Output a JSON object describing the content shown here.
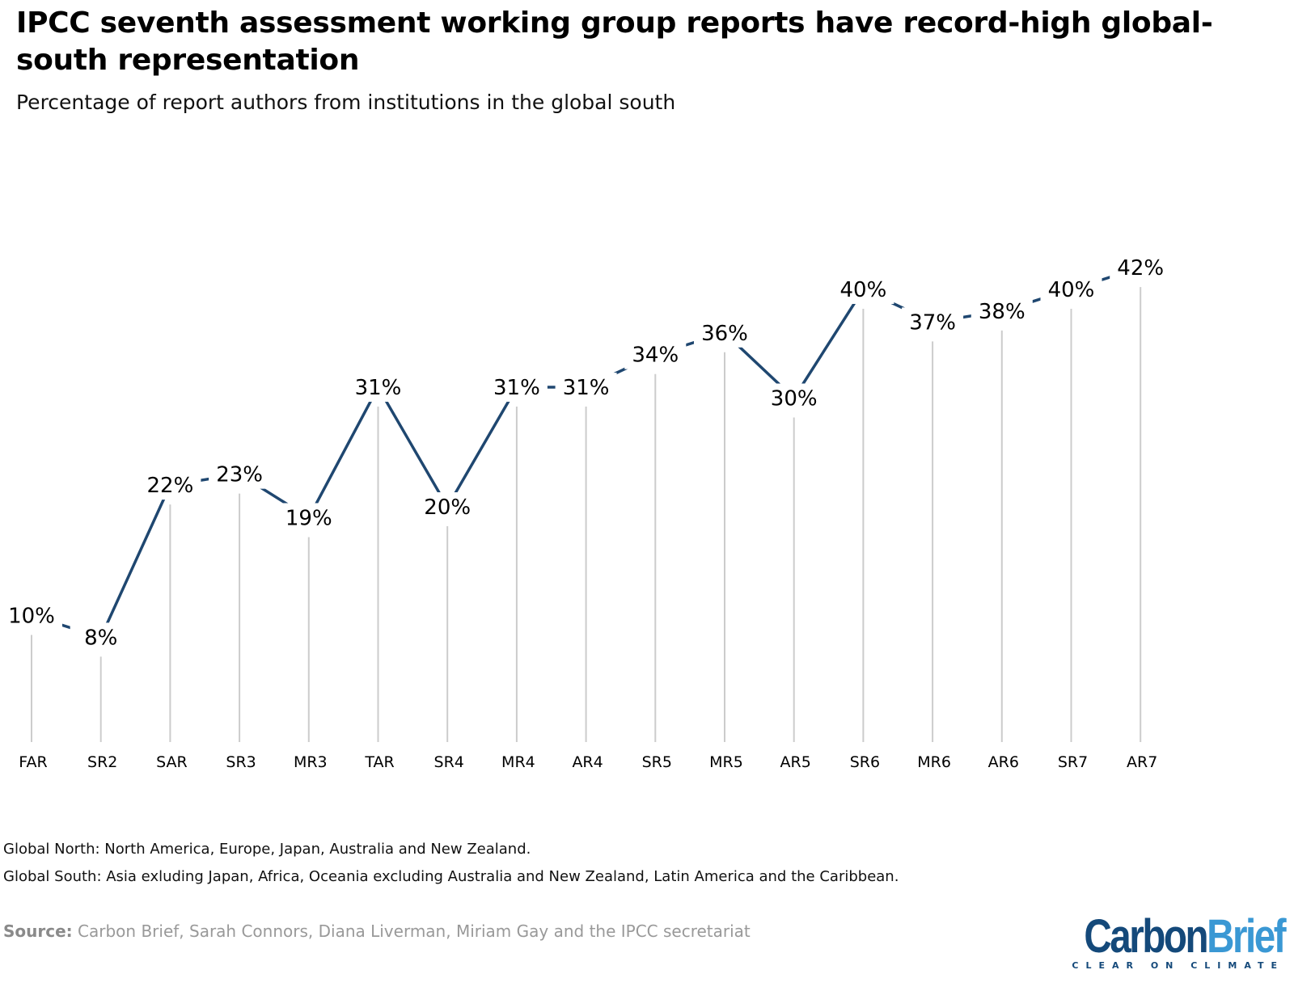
{
  "header": {
    "title": "IPCC seventh assessment working group reports have record-high global-south representation",
    "subtitle": "Percentage of report authors from institutions in the global south"
  },
  "chart_data": {
    "type": "line",
    "title": "IPCC seventh assessment working group reports have record-high global-south representation",
    "subtitle": "Percentage of report authors from institutions in the global south",
    "categories": [
      "FAR",
      "SR2",
      "SAR",
      "SR3",
      "MR3",
      "TAR",
      "SR4",
      "MR4",
      "AR4",
      "SR5",
      "MR5",
      "AR5",
      "SR6",
      "MR6",
      "AR6",
      "SR7",
      "AR7"
    ],
    "values": [
      10,
      8,
      22,
      23,
      19,
      31,
      20,
      31,
      31,
      34,
      36,
      30,
      40,
      37,
      38,
      40,
      42
    ],
    "data_labels": [
      "10%",
      "8%",
      "22%",
      "23%",
      "19%",
      "31%",
      "20%",
      "31%",
      "31%",
      "34%",
      "36%",
      "30%",
      "40%",
      "37%",
      "38%",
      "40%",
      "42%"
    ],
    "unit": "%",
    "grid": false,
    "drop_lines": true,
    "line_color": "#1f4770",
    "drop_line_color": "#cccccc"
  },
  "notes": [
    "Global North: North America, Europe, Japan, Australia and New Zealand.",
    "Global South: Asia exluding Japan, Africa, Oceania excluding Australia and New Zealand, Latin America and the Caribbean."
  ],
  "source": {
    "label": "Source:",
    "text": " Carbon Brief, Sarah Connors, Diana Liverman, Miriam Gay and the IPCC secretariat"
  },
  "logo": {
    "part1": "Carbon",
    "part2": "Brief",
    "tagline": "CLEAR ON CLIMATE"
  }
}
